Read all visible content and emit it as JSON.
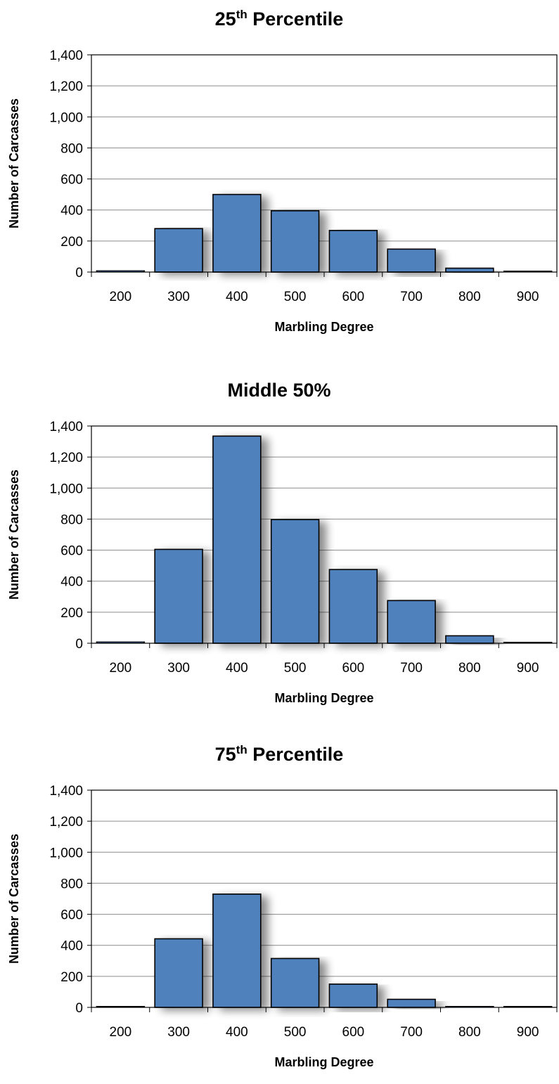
{
  "chart_data": [
    {
      "type": "bar",
      "title_main": "25",
      "title_sup": "th",
      "title_rest": " Percentile",
      "xlabel": "Marbling Degree",
      "ylabel": "Number of Carcasses",
      "categories": [
        "200",
        "300",
        "400",
        "500",
        "600",
        "700",
        "800",
        "900"
      ],
      "values": [
        10,
        280,
        500,
        395,
        268,
        148,
        25,
        3
      ],
      "ylim": [
        0,
        1400
      ],
      "yticks": [
        0,
        200,
        400,
        600,
        800,
        1000,
        1200,
        1400
      ],
      "ytick_labels": [
        "0",
        "200",
        "400",
        "600",
        "800",
        "1,000",
        "1,200",
        "1,400"
      ],
      "grid": true,
      "bar_color": "#4f81bd"
    },
    {
      "type": "bar",
      "title_main": "Middle 50%",
      "title_sup": "",
      "title_rest": "",
      "xlabel": "Marbling Degree",
      "ylabel": "Number of Carcasses",
      "categories": [
        "200",
        "300",
        "400",
        "500",
        "600",
        "700",
        "800",
        "900"
      ],
      "values": [
        10,
        605,
        1335,
        797,
        475,
        275,
        48,
        4
      ],
      "ylim": [
        0,
        1400
      ],
      "yticks": [
        0,
        200,
        400,
        600,
        800,
        1000,
        1200,
        1400
      ],
      "ytick_labels": [
        "0",
        "200",
        "400",
        "600",
        "800",
        "1,000",
        "1,200",
        "1,400"
      ],
      "grid": true,
      "bar_color": "#4f81bd"
    },
    {
      "type": "bar",
      "title_main": "75",
      "title_sup": "th",
      "title_rest": " Percentile",
      "xlabel": "Marbling Degree",
      "ylabel": "Number of Carcasses",
      "categories": [
        "200",
        "300",
        "400",
        "500",
        "600",
        "700",
        "800",
        "900"
      ],
      "values": [
        5,
        442,
        730,
        315,
        150,
        52,
        8,
        2
      ],
      "ylim": [
        0,
        1400
      ],
      "yticks": [
        0,
        200,
        400,
        600,
        800,
        1000,
        1200,
        1400
      ],
      "ytick_labels": [
        "0",
        "200",
        "400",
        "600",
        "800",
        "1,000",
        "1,200",
        "1,400"
      ],
      "grid": true,
      "bar_color": "#4f81bd"
    }
  ]
}
